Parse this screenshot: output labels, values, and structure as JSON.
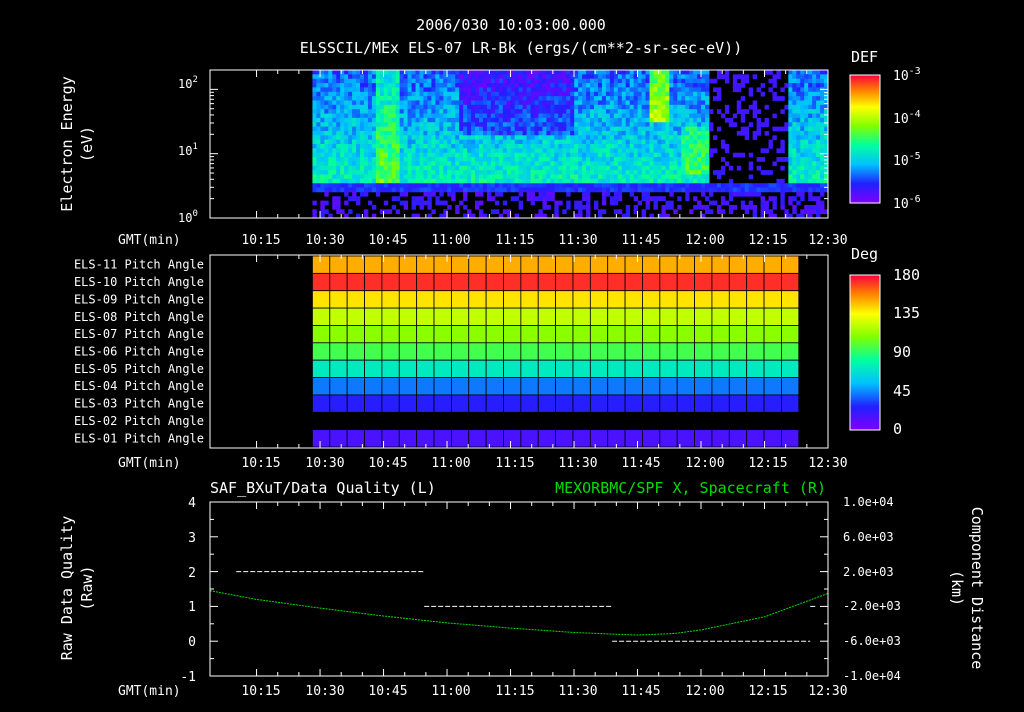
{
  "header": {
    "timestamp": "2006/030 10:03:00.000",
    "title": "ELSSCIL/MEx ELS-07 LR-Bk  (ergs/(cm**2-sr-sec-eV))"
  },
  "time_axis": {
    "label": "GMT(min)",
    "range_min": [
      10.0667,
      12.5
    ],
    "ticks": [
      "10:15",
      "10:30",
      "10:45",
      "11:00",
      "11:15",
      "11:30",
      "11:45",
      "12:00",
      "12:15",
      "12:30"
    ],
    "tick_hours": [
      10.25,
      10.5,
      10.75,
      11.0,
      11.25,
      11.5,
      11.75,
      12.0,
      12.25,
      12.5
    ]
  },
  "colors": {
    "background": "#000000",
    "foreground": "#ffffff",
    "right_series": "#00dd00"
  },
  "chart_data": [
    {
      "type": "heatmap",
      "name": "spectrogram",
      "ylabel": "Electron Energy",
      "yunit": "(eV)",
      "yscale": "log",
      "ylim": [
        1,
        200
      ],
      "ytick_labels": [
        "10^0",
        "10^1",
        "10^2"
      ],
      "data_start": 10.47,
      "colorbar": {
        "title": "DEF",
        "scale": "log",
        "ticks": [
          "10^-3",
          "10^-4",
          "10^-5",
          "10^-6"
        ]
      }
    },
    {
      "type": "heatmap",
      "name": "pitch-angle",
      "colorbar": {
        "title": "Deg",
        "ticks": [
          "180",
          "135",
          "90",
          "45",
          "0"
        ]
      },
      "rows": [
        {
          "label": "ELS-11 Pitch Angle",
          "deg": 150
        },
        {
          "label": "ELS-10 Pitch Angle",
          "deg": 172
        },
        {
          "label": "ELS-09 Pitch Angle",
          "deg": 140
        },
        {
          "label": "ELS-08 Pitch Angle",
          "deg": 122
        },
        {
          "label": "ELS-07 Pitch Angle",
          "deg": 110
        },
        {
          "label": "ELS-06 Pitch Angle",
          "deg": 95
        },
        {
          "label": "ELS-05 Pitch Angle",
          "deg": 72
        },
        {
          "label": "ELS-04 Pitch Angle",
          "deg": 42
        },
        {
          "label": "ELS-03 Pitch Angle",
          "deg": 25
        },
        {
          "label": "ELS-02 Pitch Angle",
          "deg": null
        },
        {
          "label": "ELS-01 Pitch Angle",
          "deg": 15
        }
      ],
      "x_start": 10.47,
      "x_end": 12.385,
      "columns": 28
    },
    {
      "type": "line",
      "name": "data-quality",
      "left_title": "SAF_BXuT/Data Quality (L)",
      "right_title": "MEXORBMC/SPF X, Spacecraft (R)",
      "ylabel": "Raw Data Quality",
      "yunit": "(Raw)",
      "ylim": [
        -1,
        4
      ],
      "yticks": [
        "4",
        "3",
        "2",
        "1",
        "0",
        "-1"
      ],
      "y2label": "Component Distance",
      "y2unit": "(km)",
      "y2lim": [
        -10000,
        10000
      ],
      "y2ticks": [
        "1.0e+04",
        "6.0e+03",
        "2.0e+03",
        "-2.0e+03",
        "-6.0e+03",
        "-1.0e+04"
      ],
      "quality_segments": [
        {
          "x0": 10.17,
          "x1": 10.91,
          "y": 2
        },
        {
          "x0": 10.91,
          "x1": 11.65,
          "y": 1
        },
        {
          "x0": 11.65,
          "x1": 12.43,
          "y": 0
        },
        {
          "x0": 12.43,
          "x1": 12.45,
          "y": 1
        }
      ],
      "distance_series": {
        "x": [
          10.0667,
          10.25,
          10.5,
          10.75,
          11.0,
          11.25,
          11.5,
          11.75,
          11.9,
          12.0,
          12.25,
          12.5
        ],
        "y": [
          -200,
          -1200,
          -2200,
          -3100,
          -3900,
          -4500,
          -5000,
          -5300,
          -5100,
          -4700,
          -3200,
          -500
        ]
      }
    }
  ]
}
